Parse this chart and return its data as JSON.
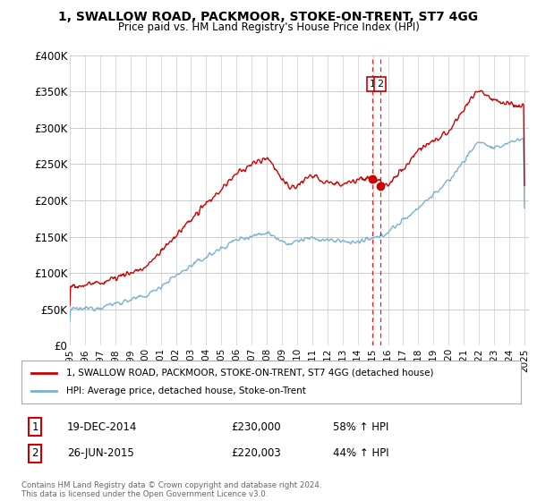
{
  "title": "1, SWALLOW ROAD, PACKMOOR, STOKE-ON-TRENT, ST7 4GG",
  "subtitle": "Price paid vs. HM Land Registry's House Price Index (HPI)",
  "ylim": [
    0,
    400000
  ],
  "yticks": [
    0,
    50000,
    100000,
    150000,
    200000,
    250000,
    300000,
    350000,
    400000
  ],
  "ytick_labels": [
    "£0",
    "£50K",
    "£100K",
    "£150K",
    "£200K",
    "£250K",
    "£300K",
    "£350K",
    "£400K"
  ],
  "transaction1_date": "19-DEC-2014",
  "transaction1_price": "£230,000",
  "transaction1_pct": "58% ↑ HPI",
  "transaction1_year": 2014.96,
  "transaction1_value": 230000,
  "transaction2_date": "26-JUN-2015",
  "transaction2_price": "£220,003",
  "transaction2_pct": "44% ↑ HPI",
  "transaction2_year": 2015.48,
  "transaction2_value": 220003,
  "legend_line1": "1, SWALLOW ROAD, PACKMOOR, STOKE-ON-TRENT, ST7 4GG (detached house)",
  "legend_line2": "HPI: Average price, detached house, Stoke-on-Trent",
  "footer": "Contains HM Land Registry data © Crown copyright and database right 2024.\nThis data is licensed under the Open Government Licence v3.0.",
  "line1_color": "#cc0000",
  "line2_color": "#7aafd4",
  "vline_color": "#cc0000",
  "background_color": "#ffffff",
  "grid_color": "#cccccc"
}
